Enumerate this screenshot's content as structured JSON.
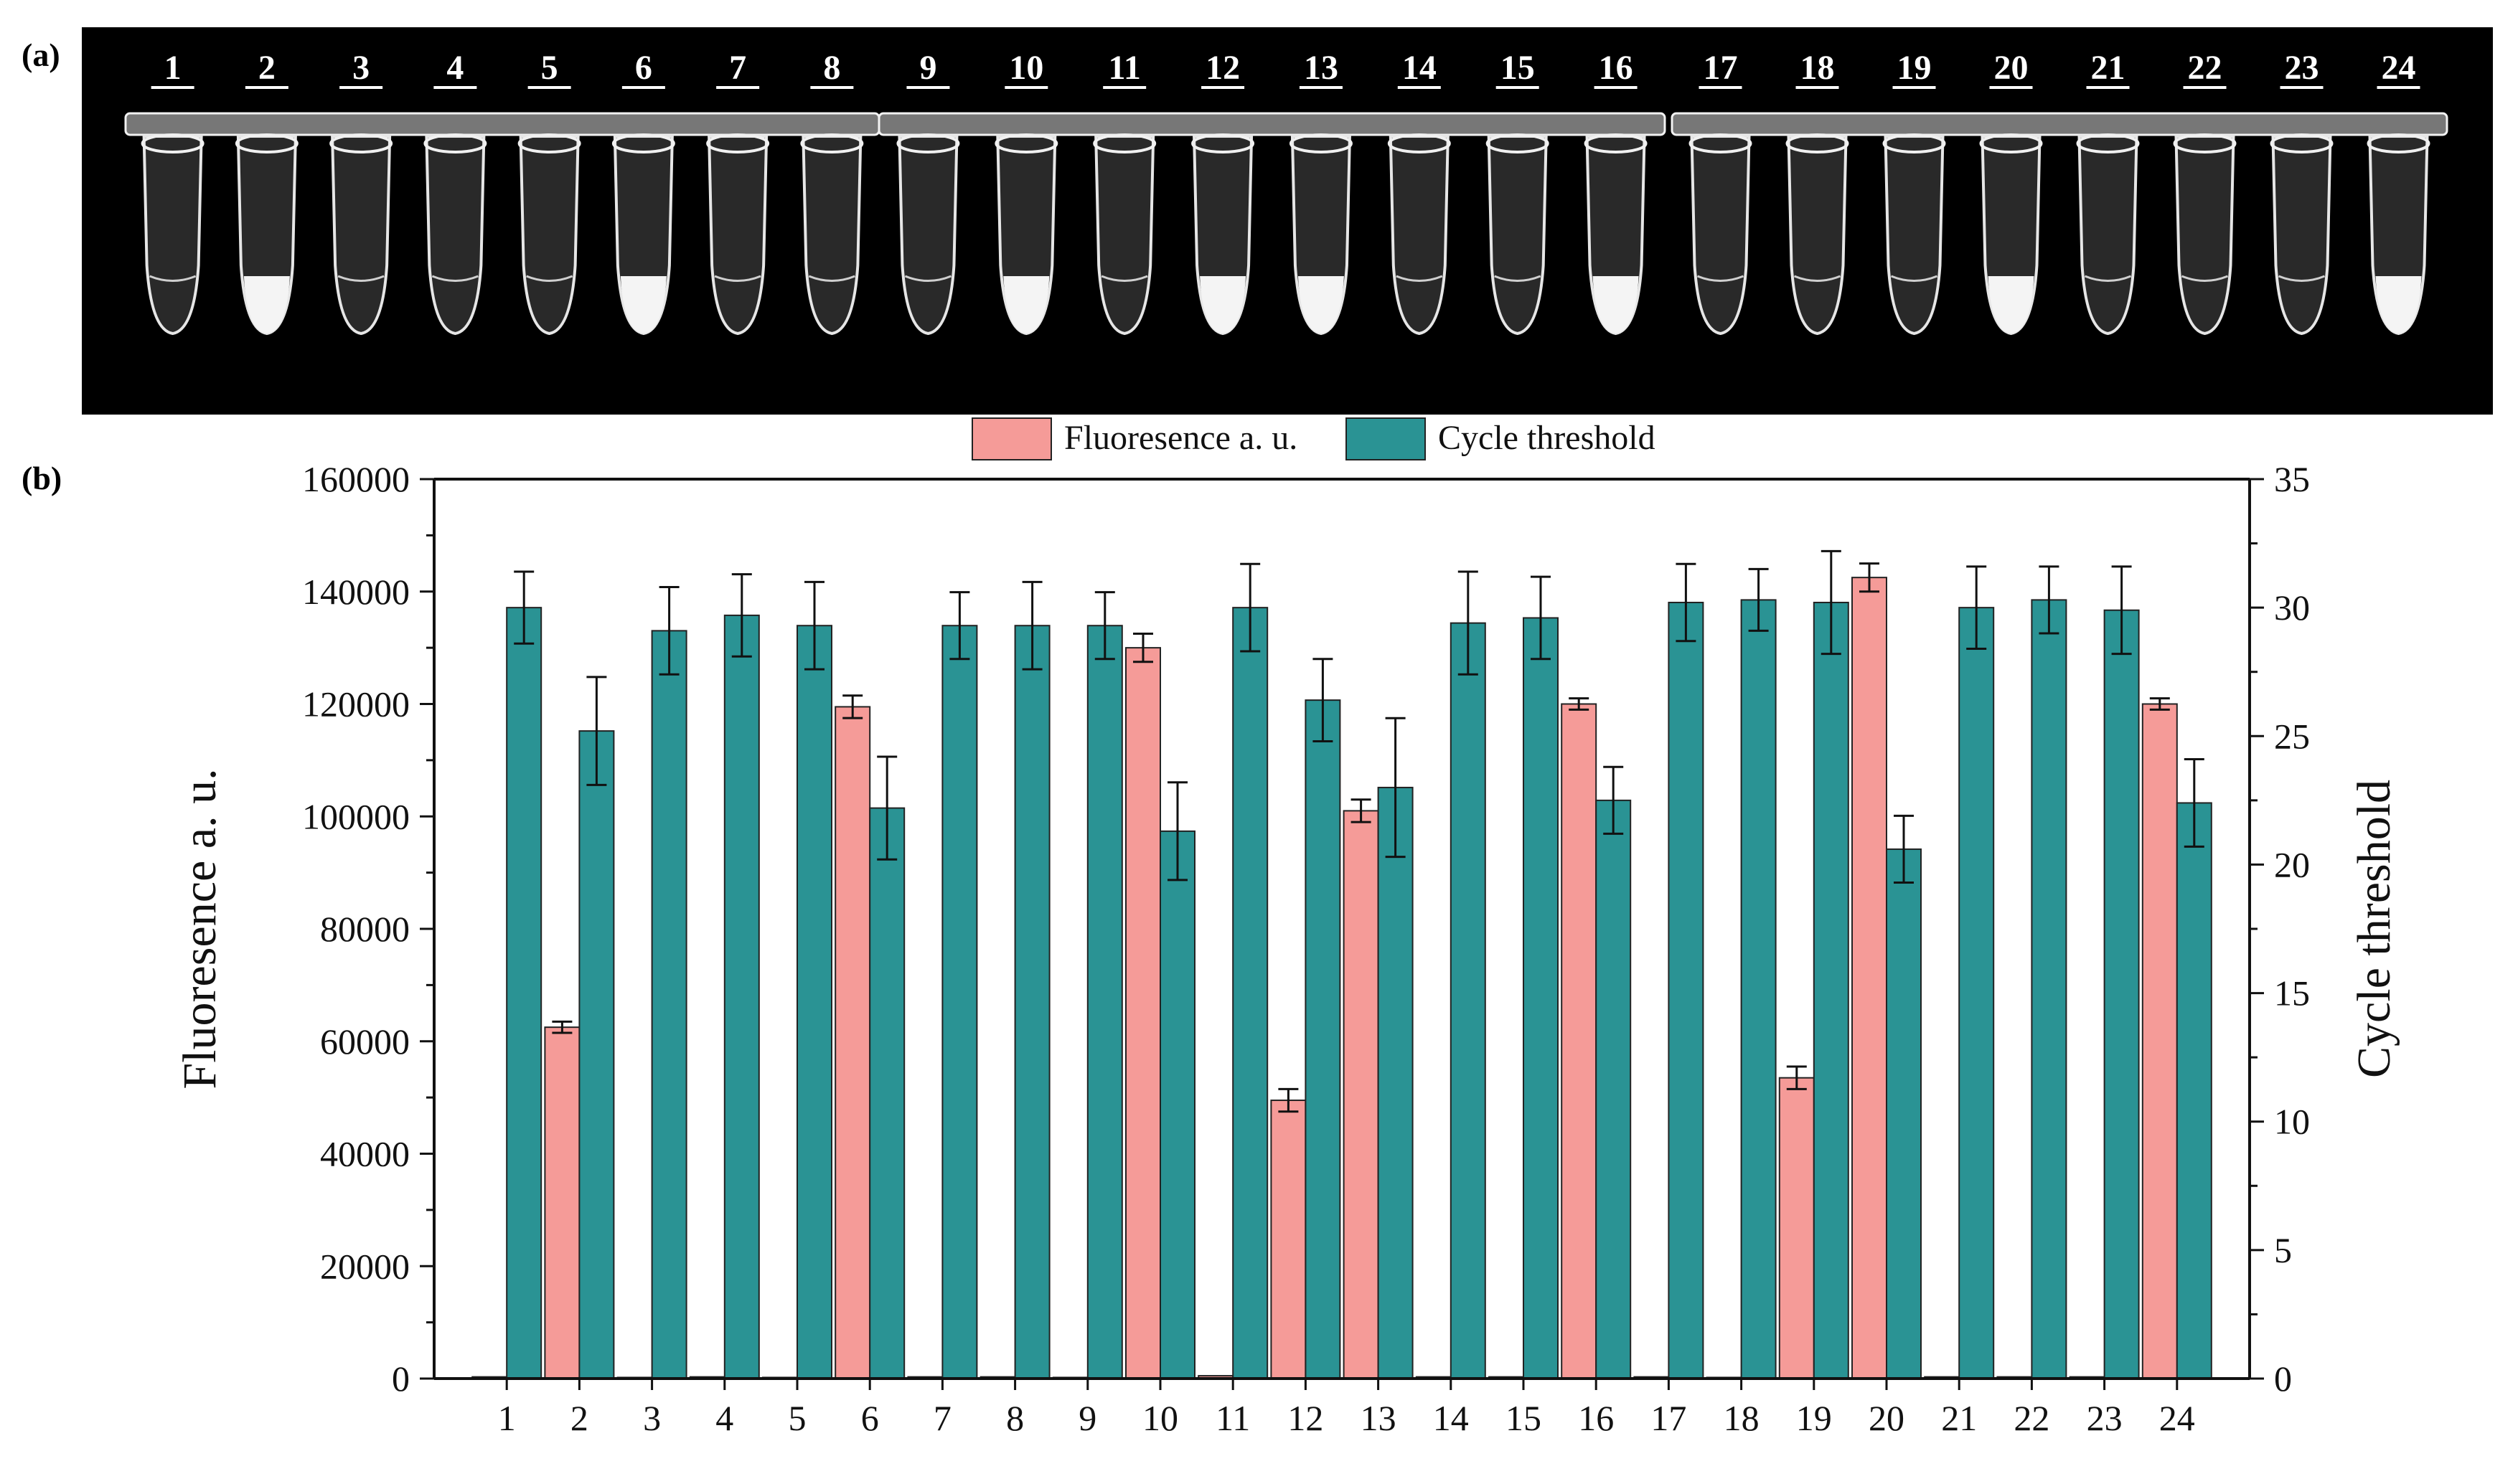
{
  "panel_labels": {
    "a": "(a)",
    "b": "(b)"
  },
  "tubes": {
    "labels": [
      "1",
      "2",
      "3",
      "4",
      "5",
      "6",
      "7",
      "8",
      "9",
      "10",
      "11",
      "12",
      "13",
      "14",
      "15",
      "16",
      "17",
      "18",
      "19",
      "20",
      "21",
      "22",
      "23",
      "24"
    ],
    "opaque": [
      false,
      true,
      false,
      false,
      false,
      true,
      false,
      false,
      false,
      true,
      false,
      true,
      true,
      false,
      false,
      true,
      false,
      false,
      false,
      true,
      false,
      false,
      false,
      true
    ]
  },
  "colors": {
    "fluorescence": "#f59b98",
    "cycle": "#2a9394",
    "photo_bg": "#000000"
  },
  "chart_data": {
    "type": "bar",
    "categories": [
      "1",
      "2",
      "3",
      "4",
      "5",
      "6",
      "7",
      "8",
      "9",
      "10",
      "11",
      "12",
      "13",
      "14",
      "15",
      "16",
      "17",
      "18",
      "19",
      "20",
      "21",
      "22",
      "23",
      "24"
    ],
    "series": [
      {
        "name": "Fluoresence a. u.",
        "axis": "left",
        "values": [
          300,
          62500,
          200,
          300,
          200,
          119500,
          300,
          300,
          200,
          130000,
          500,
          49500,
          101000,
          300,
          300,
          120000,
          300,
          200,
          53500,
          142500,
          300,
          300,
          300,
          120000
        ],
        "errors": [
          0,
          1000,
          0,
          0,
          0,
          2000,
          0,
          0,
          0,
          2500,
          0,
          2000,
          2000,
          0,
          0,
          1000,
          0,
          0,
          2000,
          2500,
          0,
          0,
          0,
          1000
        ]
      },
      {
        "name": "Cycle threshold",
        "axis": "right",
        "values": [
          30.0,
          25.2,
          29.1,
          29.7,
          29.3,
          22.2,
          29.3,
          29.3,
          29.3,
          21.3,
          30.0,
          26.4,
          23.0,
          29.4,
          29.6,
          22.5,
          30.2,
          30.3,
          30.2,
          20.6,
          30.0,
          30.3,
          29.9,
          22.4
        ],
        "errors": [
          1.4,
          2.1,
          1.7,
          1.6,
          1.7,
          2.0,
          1.3,
          1.7,
          1.3,
          1.9,
          1.7,
          1.6,
          2.7,
          2.0,
          1.6,
          1.3,
          1.5,
          1.2,
          2.0,
          1.3,
          1.6,
          1.3,
          1.7,
          1.7
        ]
      }
    ],
    "ylabel": "Fluoresence a. u.",
    "y2label": "Cycle threshold",
    "ylim": [
      0,
      160000
    ],
    "yticks": [
      "0",
      "20000",
      "40000",
      "60000",
      "80000",
      "100000",
      "120000",
      "140000",
      "160000"
    ],
    "y2lim": [
      0,
      35
    ],
    "y2ticks": [
      "0",
      "5",
      "10",
      "15",
      "20",
      "25",
      "30",
      "35"
    ],
    "legend": "top-center"
  }
}
